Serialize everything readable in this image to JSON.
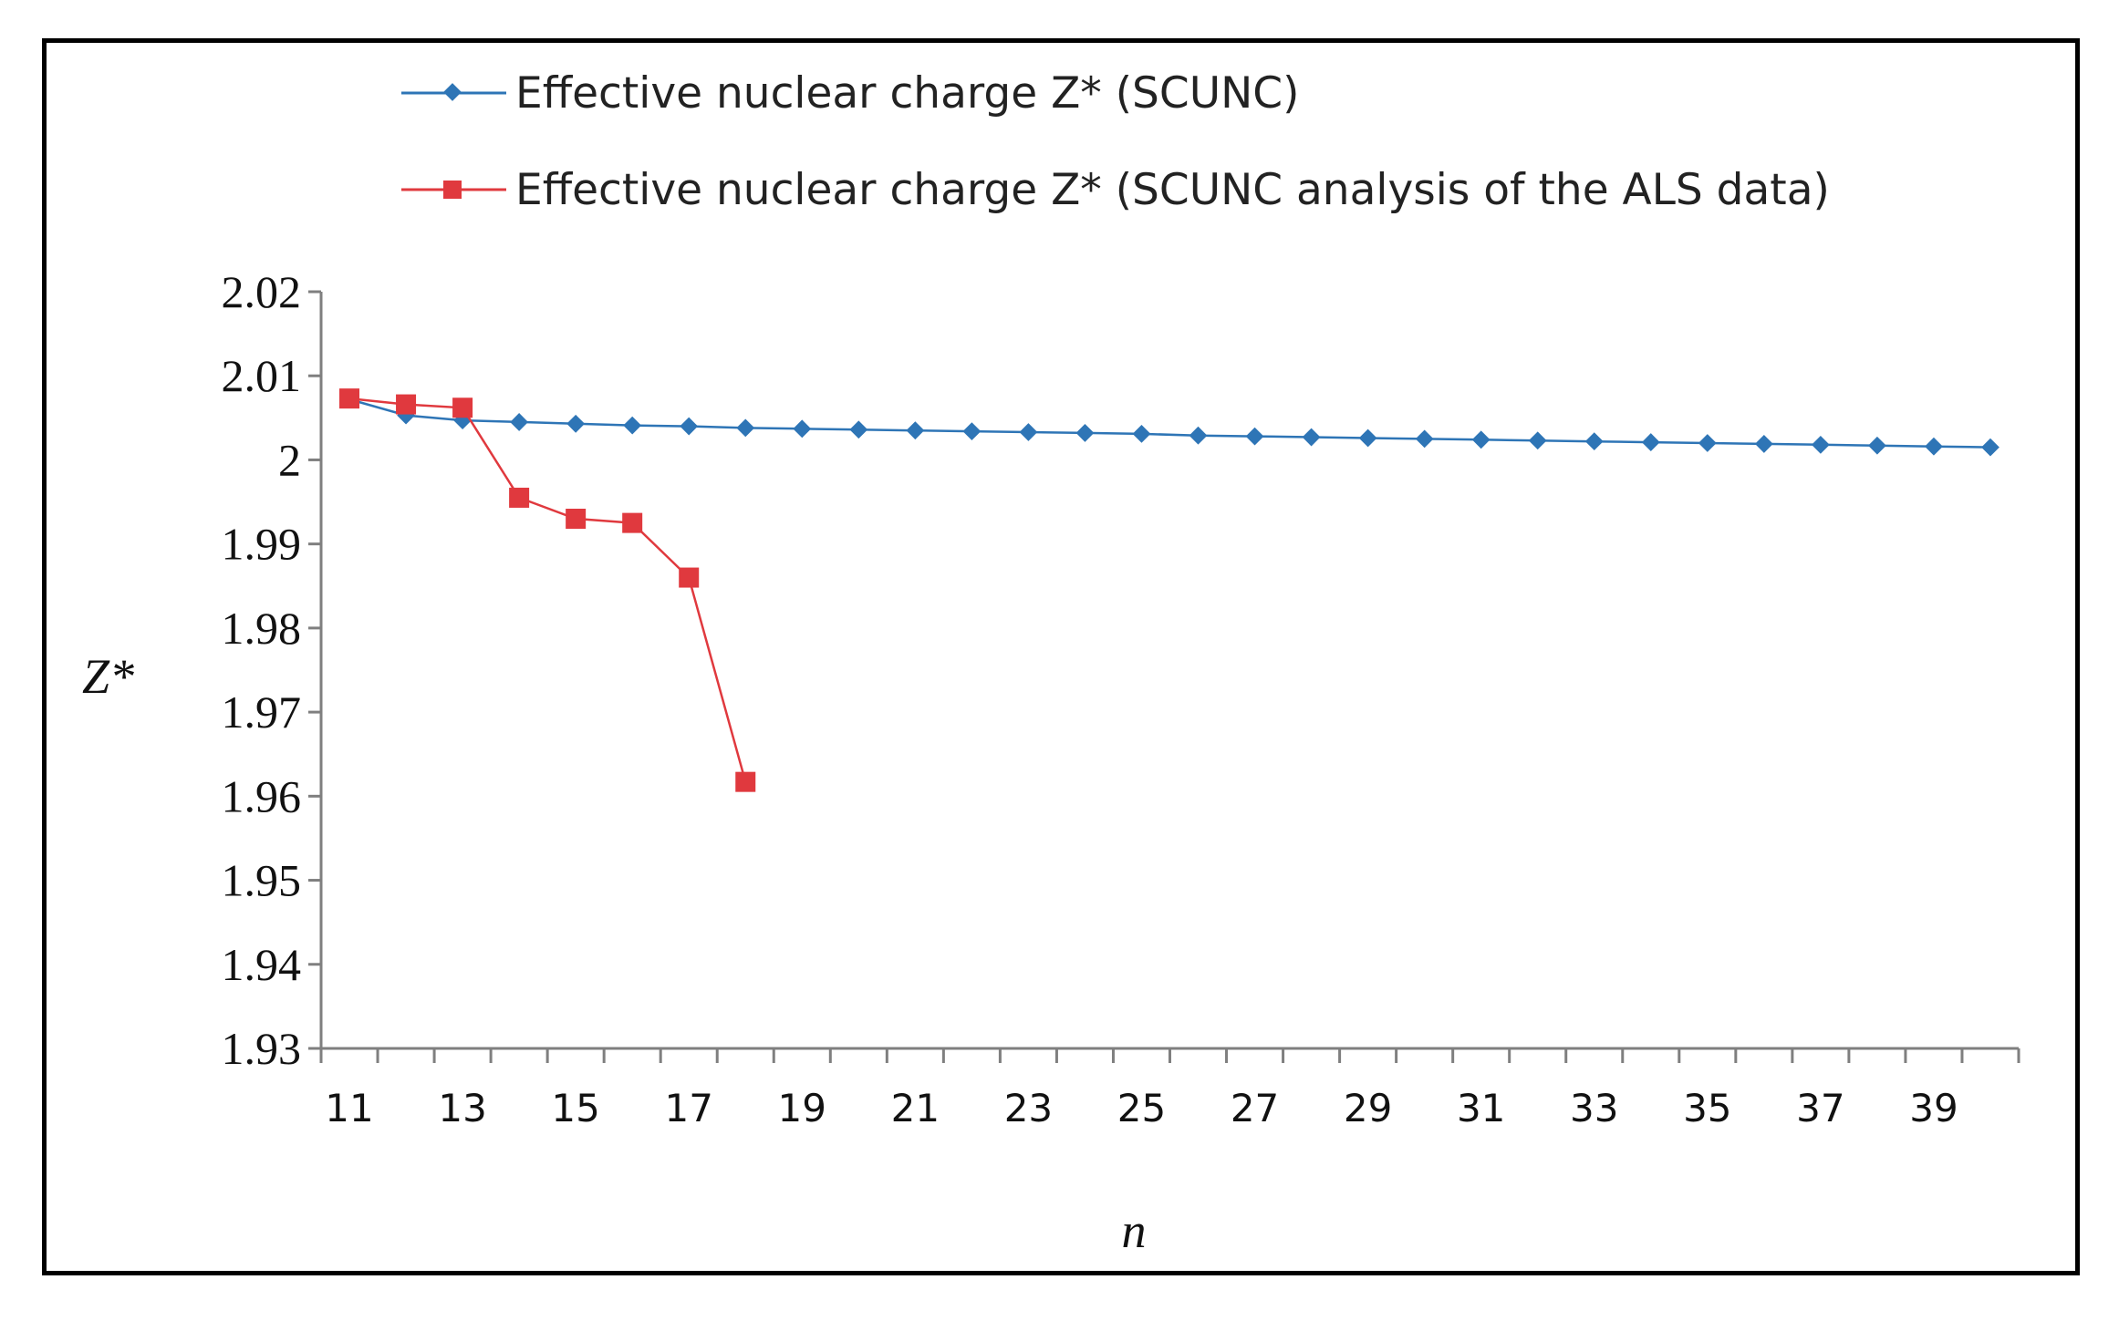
{
  "chart_data": {
    "type": "line",
    "title": "",
    "xlabel": "n",
    "ylabel": "Z*",
    "ylim": [
      1.93,
      2.02
    ],
    "y_ticks": [
      "2.02",
      "2.01",
      "2",
      "1.99",
      "1.98",
      "1.97",
      "1.96",
      "1.95",
      "1.94",
      "1.93"
    ],
    "x_ticks": [
      "11",
      "13",
      "15",
      "17",
      "19",
      "21",
      "23",
      "25",
      "27",
      "29",
      "31",
      "33",
      "35",
      "37",
      "39"
    ],
    "legend_position": "top",
    "series": [
      {
        "name": "Effective nuclear charge Z* (SCUNC)",
        "color": "#2E75B6",
        "marker": "diamond",
        "x": [
          11,
          12,
          13,
          14,
          15,
          16,
          17,
          18,
          19,
          20,
          21,
          22,
          23,
          24,
          25,
          26,
          27,
          28,
          29,
          30,
          31,
          32,
          33,
          34,
          35,
          36,
          37,
          38,
          39,
          40
        ],
        "values": [
          2.0072,
          2.0053,
          2.0047,
          2.0045,
          2.0043,
          2.0041,
          2.004,
          2.0038,
          2.0037,
          2.0036,
          2.0035,
          2.0034,
          2.0033,
          2.0032,
          2.0031,
          2.0029,
          2.0028,
          2.0027,
          2.0026,
          2.0025,
          2.0024,
          2.0023,
          2.0022,
          2.0021,
          2.002,
          2.0019,
          2.0018,
          2.0017,
          2.0016,
          2.0015
        ]
      },
      {
        "name": "Effective nuclear charge Z* (SCUNC analysis of the ALS  data)",
        "color": "#E0393E",
        "marker": "square",
        "x": [
          11,
          12,
          13,
          14,
          15,
          16,
          17,
          18
        ],
        "values": [
          2.0073,
          2.0066,
          2.0062,
          1.9955,
          1.993,
          1.9925,
          1.986,
          1.9617
        ]
      }
    ]
  }
}
